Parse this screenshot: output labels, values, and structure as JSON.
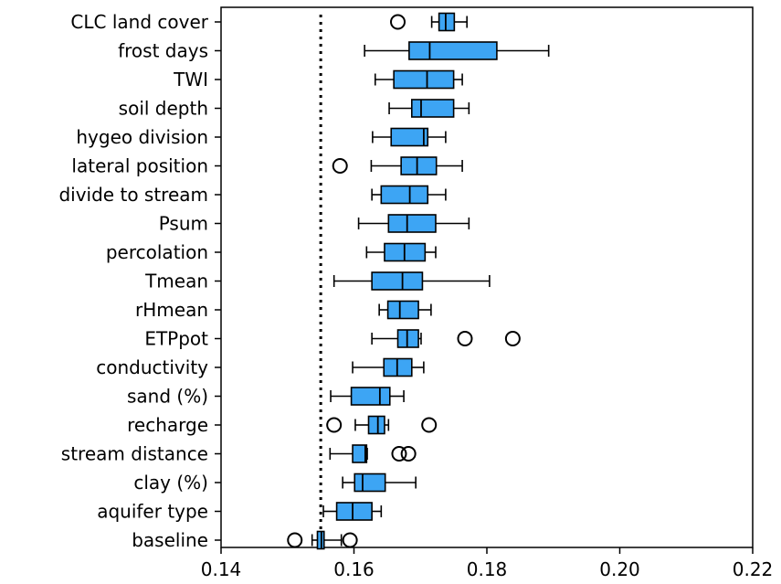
{
  "chart_data": {
    "type": "boxplot",
    "orientation": "horizontal",
    "title": "",
    "xlabel": "",
    "ylabel": "",
    "xlim": [
      0.14,
      0.22
    ],
    "xticks": [
      0.14,
      0.16,
      0.18,
      0.2,
      0.22
    ],
    "xtick_labels": [
      "0.14",
      "0.16",
      "0.18",
      "0.20",
      "0.22"
    ],
    "box_color": "#3da5f4",
    "edge_color": "#000000",
    "reference_line": {
      "value": 0.155,
      "style": "dotted"
    },
    "categories": [
      "CLC land cover",
      "frost days",
      "TWI",
      "soil depth",
      "hygeo division",
      "lateral position",
      "divide to stream",
      "Psum",
      "percolation",
      "Tmean",
      "rHmean",
      "ETPpot",
      "conductivity",
      "sand (%)",
      "recharge",
      "stream distance",
      "clay (%)",
      "aquifer type",
      "baseline"
    ],
    "boxes": [
      {
        "label": "CLC land cover",
        "whislo": 0.1717,
        "q1": 0.1728,
        "med": 0.1738,
        "q3": 0.1751,
        "whishi": 0.177,
        "fliers": [
          0.1666
        ]
      },
      {
        "label": "frost days",
        "whislo": 0.1616,
        "q1": 0.1683,
        "med": 0.1714,
        "q3": 0.1815,
        "whishi": 0.1893,
        "fliers": []
      },
      {
        "label": "TWI",
        "whislo": 0.1632,
        "q1": 0.166,
        "med": 0.171,
        "q3": 0.175,
        "whishi": 0.1763,
        "fliers": []
      },
      {
        "label": "soil depth",
        "whislo": 0.1653,
        "q1": 0.1687,
        "med": 0.1701,
        "q3": 0.175,
        "whishi": 0.1773,
        "fliers": []
      },
      {
        "label": "hygeo division",
        "whislo": 0.1628,
        "q1": 0.1656,
        "med": 0.1705,
        "q3": 0.1711,
        "whishi": 0.1738,
        "fliers": []
      },
      {
        "label": "lateral position",
        "whislo": 0.1626,
        "q1": 0.1671,
        "med": 0.1695,
        "q3": 0.1724,
        "whishi": 0.1763,
        "fliers": [
          0.1579
        ]
      },
      {
        "label": "divide to stream",
        "whislo": 0.1627,
        "q1": 0.1641,
        "med": 0.1684,
        "q3": 0.1711,
        "whishi": 0.1738,
        "fliers": []
      },
      {
        "label": "Psum",
        "whislo": 0.1607,
        "q1": 0.1652,
        "med": 0.168,
        "q3": 0.1723,
        "whishi": 0.1773,
        "fliers": []
      },
      {
        "label": "percolation",
        "whislo": 0.1619,
        "q1": 0.1646,
        "med": 0.1676,
        "q3": 0.1707,
        "whishi": 0.1723,
        "fliers": []
      },
      {
        "label": "Tmean",
        "whislo": 0.157,
        "q1": 0.1627,
        "med": 0.1673,
        "q3": 0.1703,
        "whishi": 0.1804,
        "fliers": []
      },
      {
        "label": "rHmean",
        "whislo": 0.1638,
        "q1": 0.1651,
        "med": 0.1669,
        "q3": 0.1697,
        "whishi": 0.1716,
        "fliers": []
      },
      {
        "label": "ETPpot",
        "whislo": 0.1627,
        "q1": 0.1666,
        "med": 0.168,
        "q3": 0.1697,
        "whishi": 0.1701,
        "fliers": [
          0.1767,
          0.1839
        ]
      },
      {
        "label": "conductivity",
        "whislo": 0.1598,
        "q1": 0.1645,
        "med": 0.1665,
        "q3": 0.1687,
        "whishi": 0.1705,
        "fliers": []
      },
      {
        "label": "sand (%)",
        "whislo": 0.1565,
        "q1": 0.1596,
        "med": 0.1639,
        "q3": 0.1654,
        "whishi": 0.1675,
        "fliers": []
      },
      {
        "label": "recharge",
        "whislo": 0.1602,
        "q1": 0.1622,
        "med": 0.1636,
        "q3": 0.1646,
        "whishi": 0.1652,
        "fliers": [
          0.157,
          0.1713
        ]
      },
      {
        "label": "stream distance",
        "whislo": 0.1564,
        "q1": 0.1598,
        "med": 0.1617,
        "q3": 0.1619,
        "whishi": 0.162,
        "fliers": [
          0.1668,
          0.1682
        ]
      },
      {
        "label": "clay (%)",
        "whislo": 0.1583,
        "q1": 0.1601,
        "med": 0.1613,
        "q3": 0.1647,
        "whishi": 0.1693,
        "fliers": []
      },
      {
        "label": "aquifer type",
        "whislo": 0.1554,
        "q1": 0.1574,
        "med": 0.1598,
        "q3": 0.1627,
        "whishi": 0.1641,
        "fliers": []
      },
      {
        "label": "baseline",
        "whislo": 0.1537,
        "q1": 0.1545,
        "med": 0.1551,
        "q3": 0.1555,
        "whishi": 0.1581,
        "fliers": [
          0.1511,
          0.1594
        ]
      }
    ]
  }
}
